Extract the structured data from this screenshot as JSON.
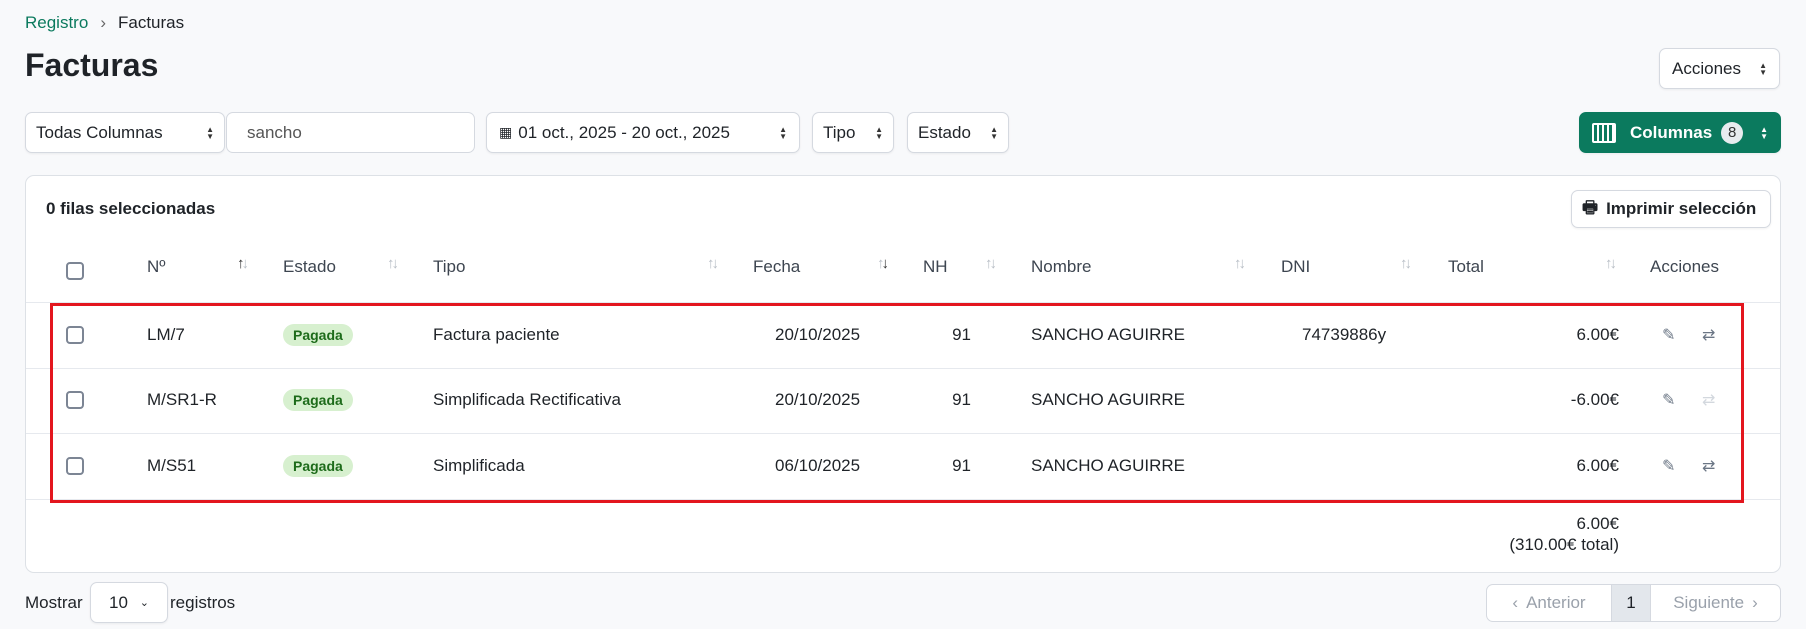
{
  "breadcrumb": {
    "parent": "Registro",
    "current": "Facturas"
  },
  "title": "Facturas",
  "actions_button": "Acciones",
  "filters": {
    "column_select": "Todas Columnas",
    "search_value": "sancho",
    "date_range": "01 oct., 2025 - 20 oct., 2025",
    "tipo": "Tipo",
    "estado": "Estado",
    "columns_button": "Columnas",
    "columns_count": "8"
  },
  "accent": "#0b7a5e",
  "table": {
    "selected_text": "0 filas seleccionadas",
    "print_button": "Imprimir selección",
    "headers": [
      "Nº",
      "Estado",
      "Tipo",
      "Fecha",
      "NH",
      "Nombre",
      "DNI",
      "Total",
      "Acciones"
    ],
    "rows": [
      {
        "numero": "LM/7",
        "estado": "Pagada",
        "tipo": "Factura paciente",
        "fecha": "20/10/2025",
        "nh": "91",
        "nombre": "SANCHO AGUIRRE",
        "dni": "74739886y",
        "total": "6.00€",
        "repeat_enabled": true
      },
      {
        "numero": "M/SR1-R",
        "estado": "Pagada",
        "tipo": "Simplificada Rectificativa",
        "fecha": "20/10/2025",
        "nh": "91",
        "nombre": "SANCHO AGUIRRE",
        "dni": "",
        "total": "-6.00€",
        "repeat_enabled": false
      },
      {
        "numero": "M/S51",
        "estado": "Pagada",
        "tipo": "Simplificada",
        "fecha": "06/10/2025",
        "nh": "91",
        "nombre": "SANCHO AGUIRRE",
        "dni": "",
        "total": "6.00€",
        "repeat_enabled": true
      }
    ],
    "sum": "6.00€",
    "grand_total": "(310.00€ total)"
  },
  "footer": {
    "show_label": "Mostrar",
    "page_size": "10",
    "records_label": "registros",
    "prev": "Anterior",
    "page": "1",
    "next": "Siguiente"
  }
}
